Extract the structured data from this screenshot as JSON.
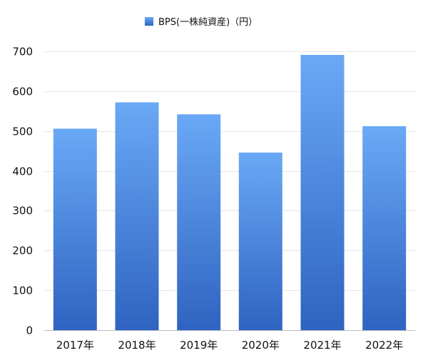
{
  "chart_data": {
    "type": "bar",
    "categories": [
      "2017年",
      "2018年",
      "2019年",
      "2020年",
      "2021年",
      "2022年"
    ],
    "series": [
      {
        "name": "BPS(一株純資産)（円）",
        "values": [
          506,
          572,
          542,
          446,
          691,
          512
        ]
      }
    ],
    "title": "",
    "xlabel": "",
    "ylabel": "",
    "ylim": [
      0,
      700
    ],
    "yticks": [
      0,
      100,
      200,
      300,
      400,
      500,
      600,
      700
    ],
    "grid": true,
    "legend_position": "top-center",
    "colors": {
      "bar_top": "#6aa9f6",
      "bar_bottom": "#2f63c1",
      "legend_swatch_top": "#6aa9f6",
      "legend_swatch_bottom": "#2f63c1"
    }
  }
}
